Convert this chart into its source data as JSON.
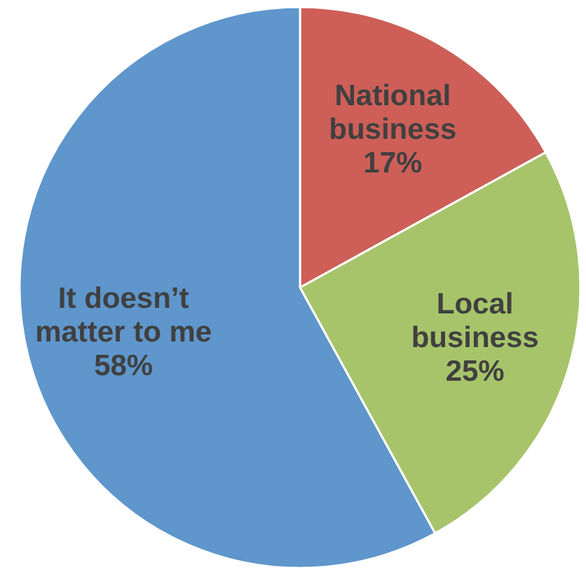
{
  "chart_data": {
    "type": "pie",
    "categories": [
      "National\nbusiness",
      "Local\nbusiness",
      "It doesn’t\nmatter to me"
    ],
    "values": [
      17,
      25,
      58
    ],
    "colors": [
      "#cd5f58",
      "#a7c46b",
      "#5f96cb"
    ],
    "value_labels": [
      "17%",
      "25%",
      "58%"
    ]
  }
}
